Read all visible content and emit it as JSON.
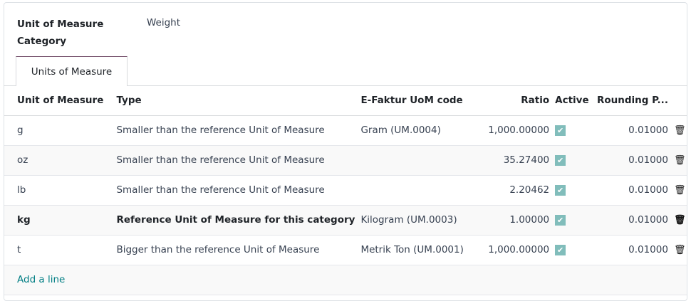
{
  "form": {
    "category_label": "Unit of Measure Category",
    "category_value": "Weight"
  },
  "tabs": [
    {
      "label": "Units of Measure",
      "active": true
    }
  ],
  "table": {
    "headers": [
      "Unit of Measure",
      "Type",
      "E-Faktur UoM code",
      "Ratio",
      "Active",
      "Rounding P..."
    ],
    "rows": [
      {
        "uom": "g",
        "type": "Smaller than the reference Unit of Measure",
        "efaktur": "Gram (UM.0004)",
        "ratio": "1,000.00000",
        "active": true,
        "rounding": "0.01000"
      },
      {
        "uom": "oz",
        "type": "Smaller than the reference Unit of Measure",
        "efaktur": "",
        "ratio": "35.27400",
        "active": true,
        "rounding": "0.01000"
      },
      {
        "uom": "lb",
        "type": "Smaller than the reference Unit of Measure",
        "efaktur": "",
        "ratio": "2.20462",
        "active": true,
        "rounding": "0.01000"
      },
      {
        "uom": "kg",
        "type": "Reference Unit of Measure for this category",
        "efaktur": "Kilogram (UM.0003)",
        "ratio": "1.00000",
        "active": true,
        "rounding": "0.01000"
      },
      {
        "uom": "t",
        "type": "Bigger than the reference Unit of Measure",
        "efaktur": "Metrik Ton (UM.0001)",
        "ratio": "1,000.00000",
        "active": true,
        "rounding": "0.01000"
      }
    ],
    "add_line": "Add a line"
  },
  "colors": {
    "accent": "#017e84",
    "checkbox": "#81bdbb",
    "tab_top": "#714b67"
  }
}
